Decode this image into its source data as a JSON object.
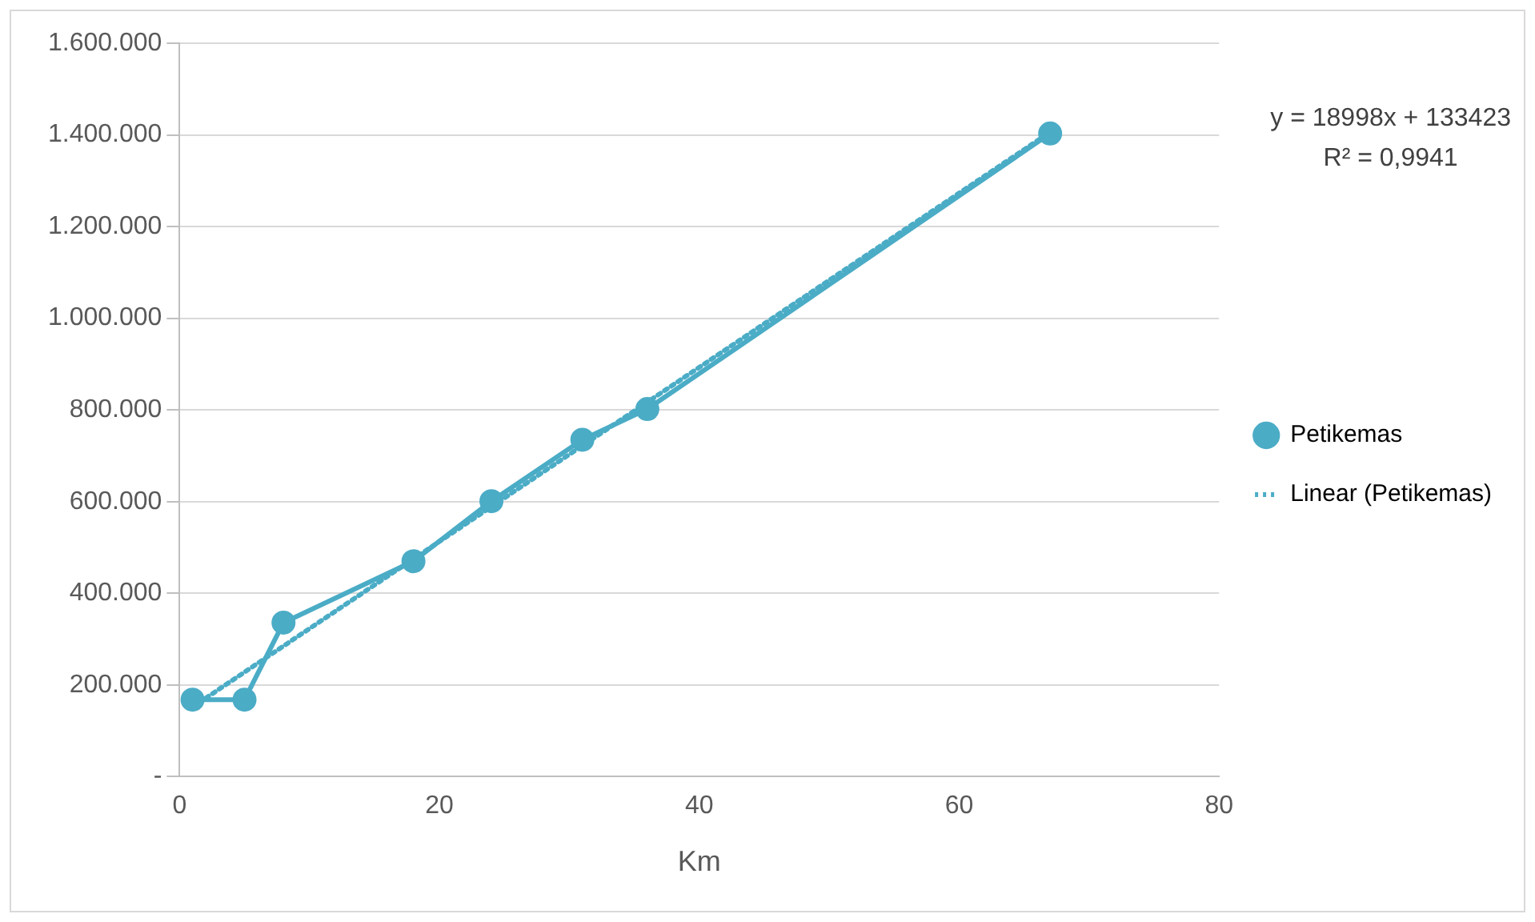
{
  "chart_data": {
    "type": "line",
    "xlabel": "Km",
    "legend": "right",
    "grid": "y",
    "marker": "circle",
    "annotations": [
      "y = 18998x + 133423",
      "R² = 0,9941"
    ],
    "xlim": [
      0,
      80
    ],
    "xticks": [
      0,
      20,
      40,
      60,
      80
    ],
    "ylim": [
      0,
      1600000
    ],
    "yticks": [
      {
        "value": 0,
        "label": "-"
      },
      {
        "value": 200000,
        "label": "200.000"
      },
      {
        "value": 400000,
        "label": "400.000"
      },
      {
        "value": 600000,
        "label": "600.000"
      },
      {
        "value": 800000,
        "label": "800.000"
      },
      {
        "value": 1000000,
        "label": "1.000.000"
      },
      {
        "value": 1200000,
        "label": "1.200.000"
      },
      {
        "value": 1400000,
        "label": "1.400.000"
      },
      {
        "value": 1600000,
        "label": "1.600.000"
      }
    ],
    "series": [
      {
        "name": "Petikemas",
        "color": "#4bacc6",
        "x": [
          1,
          5,
          8,
          18,
          24,
          31,
          36,
          67
        ],
        "values": [
          168000,
          168000,
          336000,
          470000,
          601000,
          735000,
          802000,
          1403000
        ]
      },
      {
        "name": "Linear (Petikemas)",
        "color": "#4bacc6",
        "x": [
          1,
          67
        ],
        "values": [
          152000,
          1406000
        ],
        "line_style": "dotted",
        "marker": "none"
      }
    ]
  }
}
